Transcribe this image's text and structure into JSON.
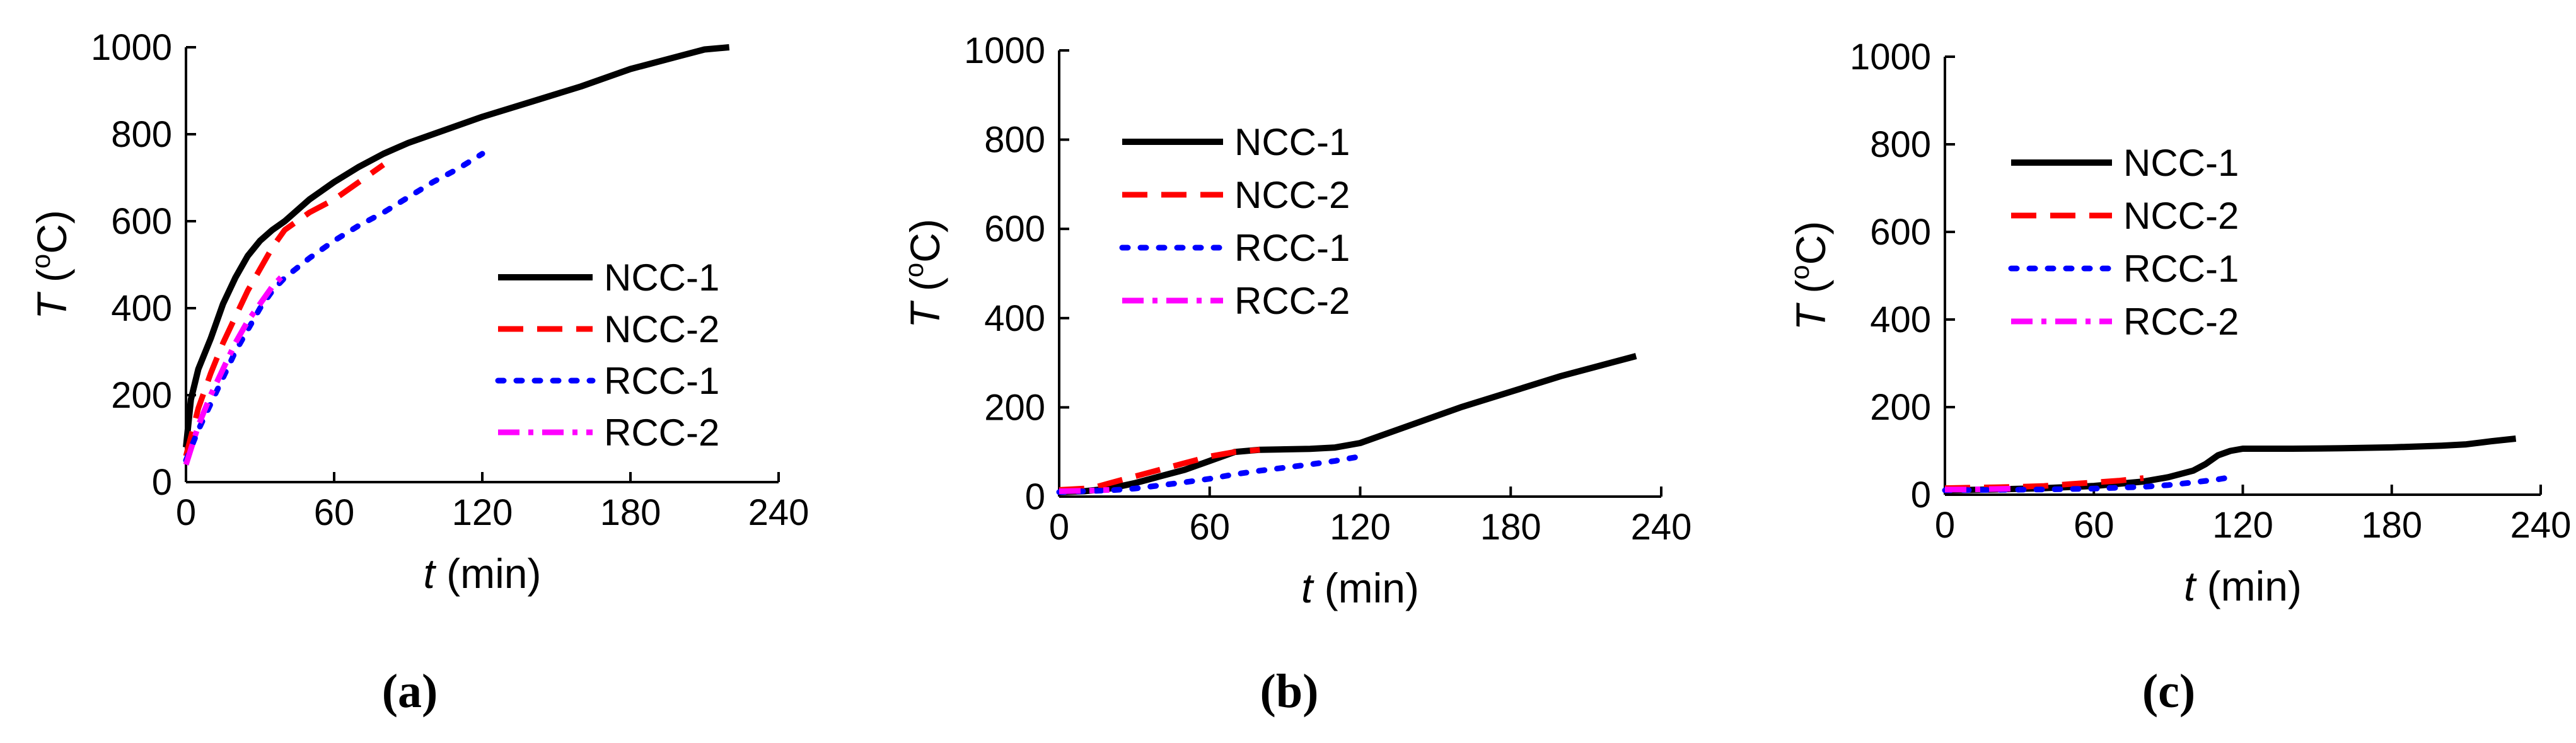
{
  "series_styles": [
    {
      "name": "NCC-1",
      "color": "#000000",
      "dash": "solid"
    },
    {
      "name": "NCC-2",
      "color": "#ff0000",
      "dash": "dash"
    },
    {
      "name": "RCC-1",
      "color": "#0000ff",
      "dash": "dot"
    },
    {
      "name": "RCC-2",
      "color": "#ff00ff",
      "dash": "dashdot"
    }
  ],
  "chart_data": [
    {
      "type": "line",
      "panel_label": "(a)",
      "xlabel_var": "t",
      "xlabel_unit": " (min)",
      "ylabel_var": "T",
      "ylabel_unit_open": " (",
      "ylabel_degree": "o",
      "ylabel_unit_close": "C)",
      "xlim": [
        0,
        240
      ],
      "ylim": [
        0,
        1000
      ],
      "xticks": [
        0,
        60,
        120,
        180,
        240
      ],
      "yticks": [
        0,
        200,
        400,
        600,
        800,
        1000
      ],
      "legend_position": "bottom-right",
      "series": [
        {
          "name": "NCC-1",
          "x": [
            0,
            2,
            5,
            10,
            15,
            20,
            25,
            30,
            35,
            40,
            50,
            60,
            70,
            80,
            90,
            100,
            120,
            140,
            160,
            180,
            200,
            210,
            220
          ],
          "y": [
            80,
            190,
            260,
            330,
            410,
            470,
            520,
            555,
            580,
            600,
            650,
            690,
            725,
            755,
            780,
            800,
            840,
            875,
            910,
            950,
            980,
            995,
            1000
          ]
        },
        {
          "name": "NCC-2",
          "x": [
            0,
            5,
            10,
            15,
            20,
            25,
            30,
            35,
            40,
            50,
            60,
            70,
            80
          ],
          "y": [
            60,
            170,
            250,
            320,
            380,
            440,
            490,
            540,
            580,
            620,
            650,
            690,
            730
          ]
        },
        {
          "name": "RCC-1",
          "x": [
            0,
            5,
            10,
            15,
            20,
            25,
            30,
            35,
            40,
            50,
            60,
            70,
            80,
            90,
            100,
            110,
            120
          ],
          "y": [
            50,
            120,
            180,
            240,
            300,
            350,
            400,
            440,
            470,
            515,
            555,
            590,
            620,
            655,
            690,
            720,
            755
          ]
        },
        {
          "name": "RCC-2",
          "x": [
            0,
            5,
            10,
            15,
            20,
            25,
            30,
            35,
            40
          ],
          "y": [
            40,
            130,
            200,
            260,
            320,
            370,
            410,
            450,
            480
          ]
        }
      ]
    },
    {
      "type": "line",
      "panel_label": "(b)",
      "xlabel_var": "t",
      "xlabel_unit": " (min)",
      "ylabel_var": "T",
      "ylabel_unit_open": " (",
      "ylabel_degree": "o",
      "ylabel_unit_close": "C)",
      "xlim": [
        0,
        240
      ],
      "ylim": [
        0,
        1000
      ],
      "xticks": [
        0,
        60,
        120,
        180,
        240
      ],
      "yticks": [
        0,
        200,
        400,
        600,
        800,
        1000
      ],
      "legend_position": "top-left",
      "series": [
        {
          "name": "NCC-1",
          "x": [
            0,
            10,
            20,
            30,
            40,
            50,
            60,
            70,
            80,
            90,
            100,
            110,
            120,
            140,
            160,
            180,
            200,
            220,
            230
          ],
          "y": [
            10,
            12,
            18,
            30,
            45,
            60,
            80,
            100,
            105,
            106,
            107,
            110,
            120,
            160,
            200,
            235,
            270,
            300,
            315
          ]
        },
        {
          "name": "NCC-2",
          "x": [
            0,
            10,
            15,
            20,
            30,
            40,
            50,
            60,
            70,
            80
          ],
          "y": [
            15,
            18,
            22,
            30,
            45,
            60,
            75,
            90,
            100,
            105
          ]
        },
        {
          "name": "RCC-1",
          "x": [
            0,
            10,
            20,
            30,
            40,
            50,
            60,
            70,
            80,
            90,
            100,
            110,
            120
          ],
          "y": [
            10,
            12,
            14,
            18,
            25,
            32,
            40,
            50,
            58,
            65,
            72,
            80,
            90
          ]
        },
        {
          "name": "RCC-2",
          "x": [
            0,
            10,
            20
          ],
          "y": [
            12,
            13,
            15
          ]
        }
      ]
    },
    {
      "type": "line",
      "panel_label": "(c)",
      "xlabel_var": "t",
      "xlabel_unit": " (min)",
      "ylabel_var": "T",
      "ylabel_unit_open": " (",
      "ylabel_degree": "o",
      "ylabel_unit_close": "C)",
      "xlim": [
        0,
        240
      ],
      "ylim": [
        0,
        1000
      ],
      "xticks": [
        0,
        60,
        120,
        180,
        240
      ],
      "yticks": [
        0,
        200,
        400,
        600,
        800,
        1000
      ],
      "legend_position": "top-left",
      "series": [
        {
          "name": "NCC-1",
          "x": [
            0,
            20,
            40,
            60,
            80,
            90,
            100,
            105,
            110,
            115,
            120,
            140,
            160,
            180,
            200,
            210,
            220,
            230
          ],
          "y": [
            10,
            12,
            15,
            20,
            30,
            40,
            55,
            70,
            90,
            100,
            105,
            105,
            106,
            108,
            112,
            115,
            122,
            128
          ]
        },
        {
          "name": "NCC-2",
          "x": [
            0,
            10,
            20,
            30,
            40,
            50,
            60,
            70,
            80
          ],
          "y": [
            15,
            16,
            17,
            18,
            20,
            24,
            28,
            32,
            38
          ]
        },
        {
          "name": "RCC-1",
          "x": [
            0,
            20,
            40,
            60,
            80,
            90,
            100,
            110,
            115
          ],
          "y": [
            10,
            11,
            12,
            14,
            18,
            22,
            28,
            35,
            40
          ]
        },
        {
          "name": "RCC-2",
          "x": [
            0,
            10,
            20,
            30
          ],
          "y": [
            12,
            12,
            13,
            14
          ]
        }
      ]
    }
  ]
}
